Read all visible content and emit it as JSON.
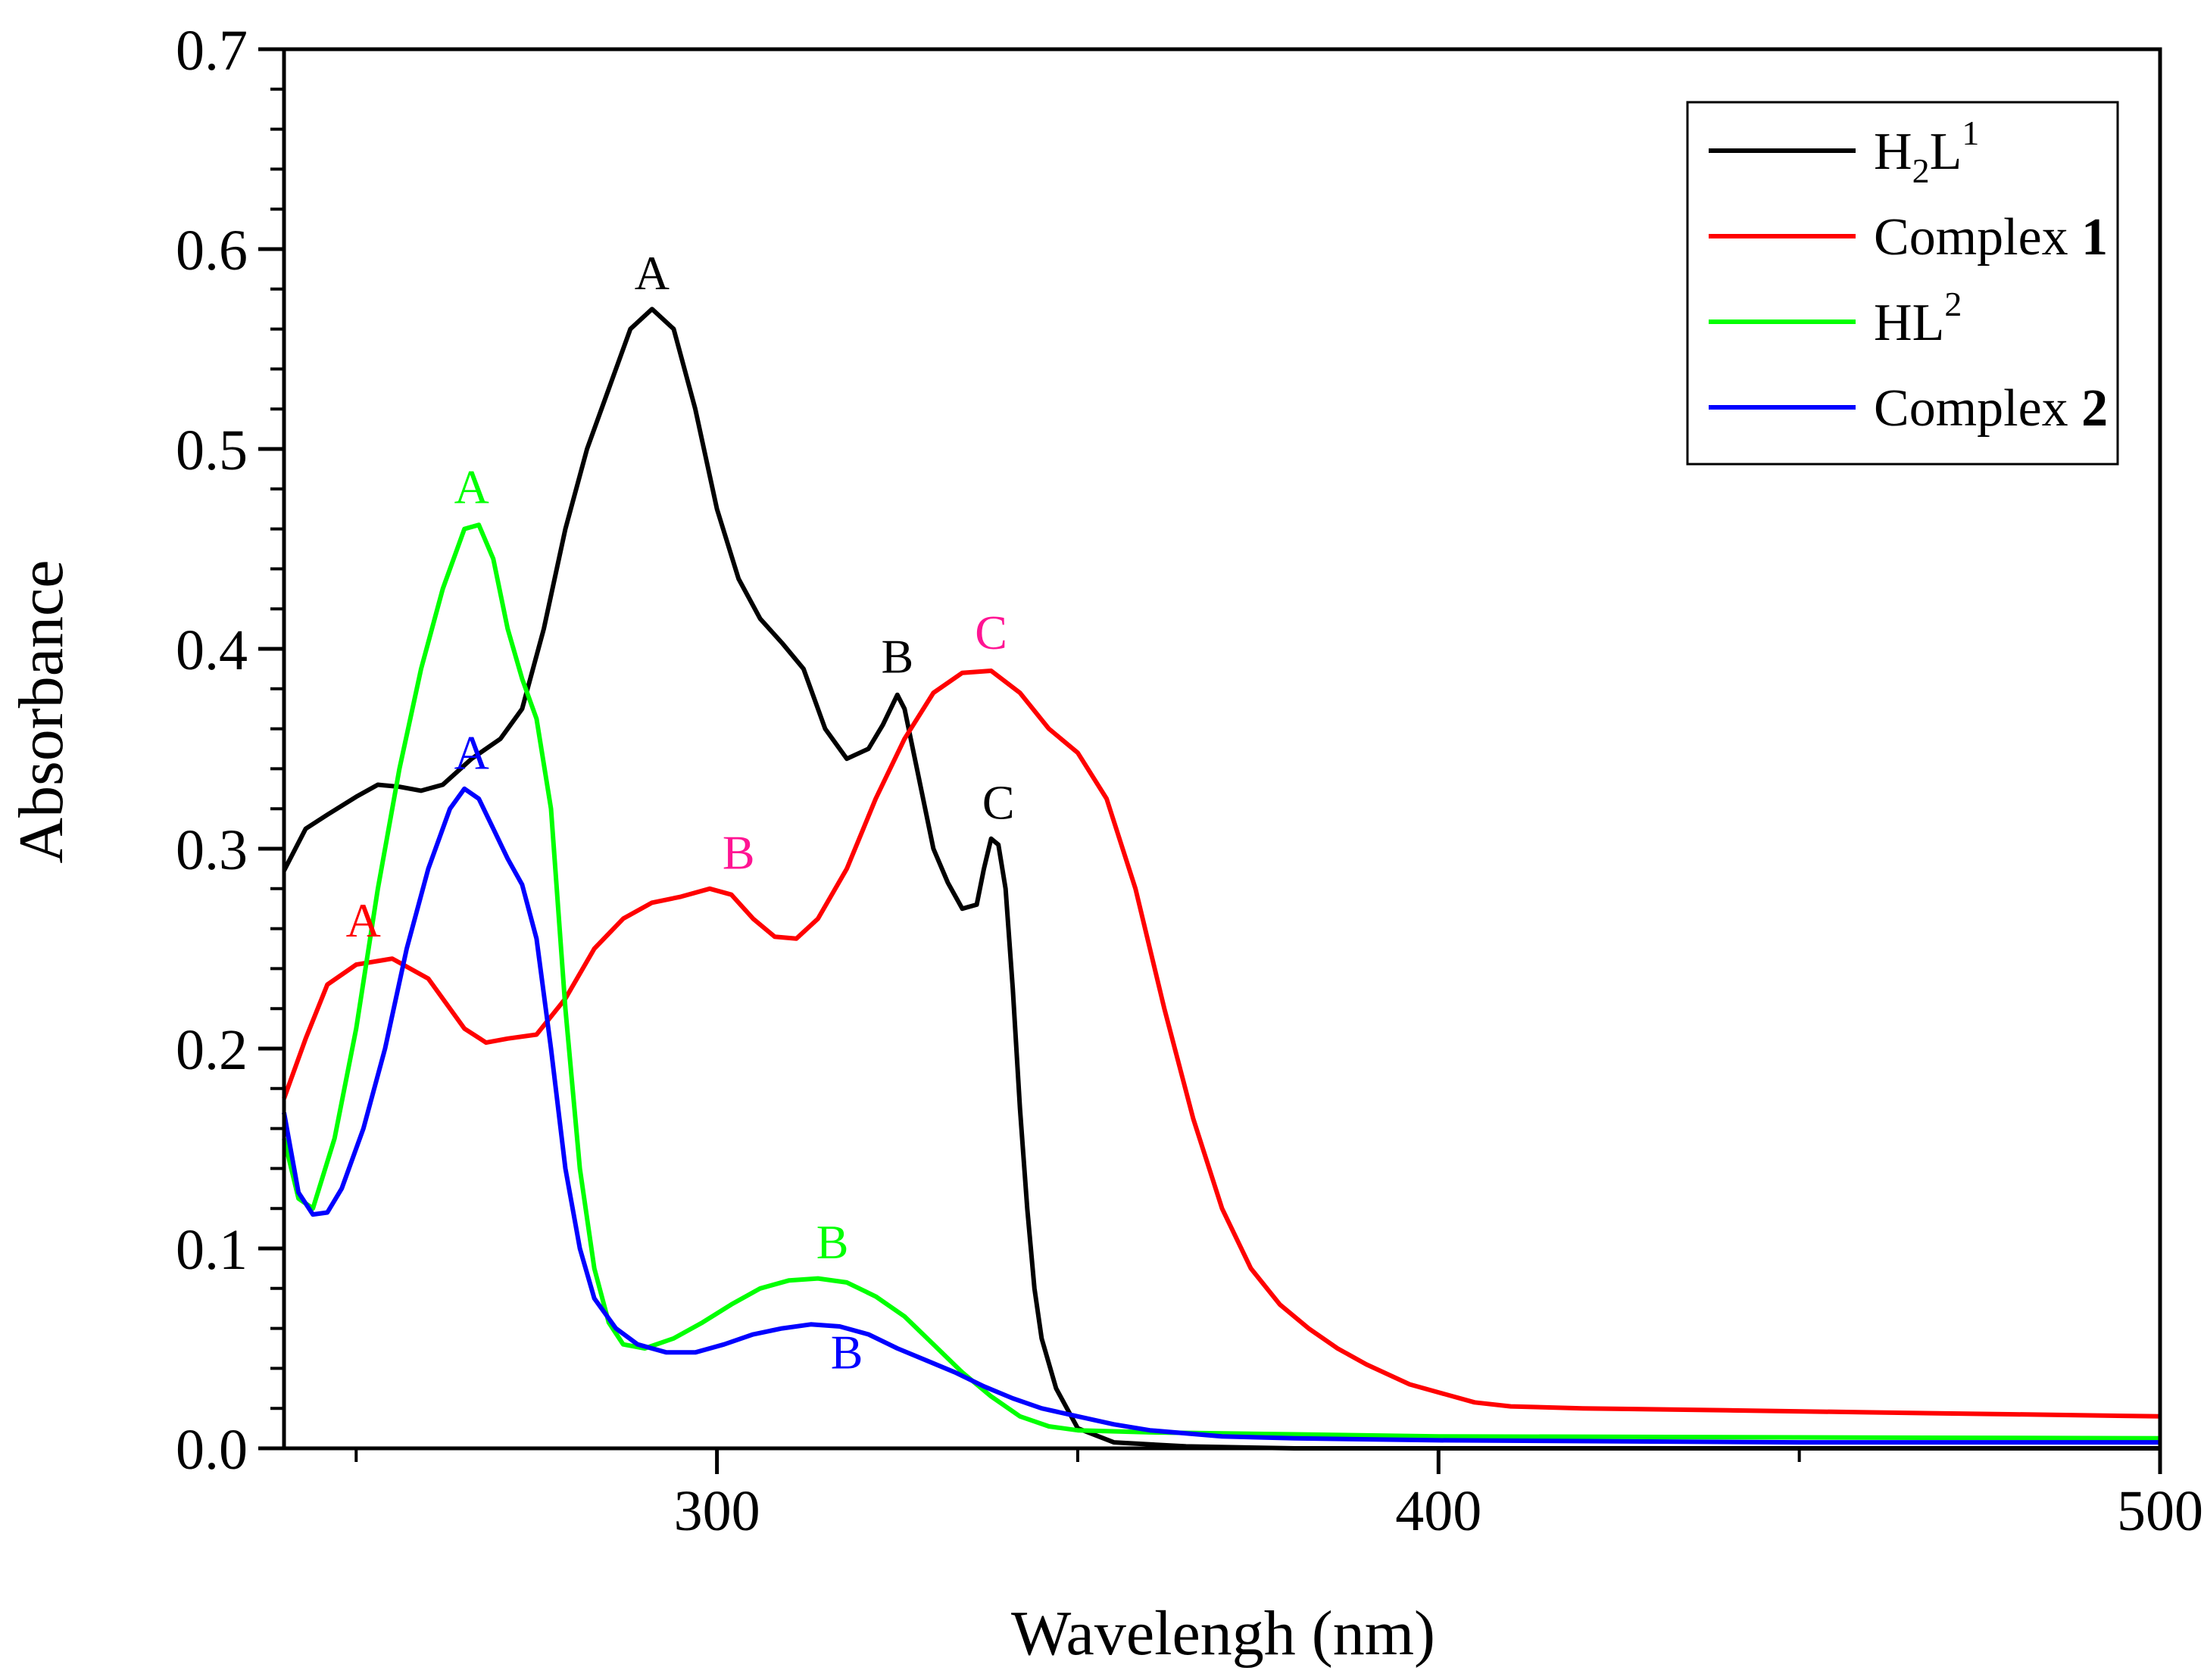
{
  "chart_data": {
    "type": "line",
    "title": "",
    "xlabel": "Wavelengh (nm)",
    "ylabel": "Absorbance",
    "xlim": [
      240,
      500
    ],
    "ylim": [
      0.0,
      0.7
    ],
    "x_ticks": [
      300,
      400,
      500
    ],
    "x_tick_labels": [
      "300",
      "400",
      "500"
    ],
    "x_minor_ticks": [
      250,
      350,
      450
    ],
    "y_ticks": [
      0.0,
      0.1,
      0.2,
      0.3,
      0.4,
      0.5,
      0.6,
      0.7
    ],
    "y_tick_labels": [
      "0.0",
      "0.1",
      "0.2",
      "0.3",
      "0.4",
      "0.5",
      "0.6",
      "0.7"
    ],
    "y_minor_step": 0.02,
    "grid": false,
    "legend_position": "top-right",
    "series": [
      {
        "name": "H2L1",
        "legend": {
          "main": "H",
          "sub": "2",
          "mid": "L",
          "sup": "1",
          "bold": ""
        },
        "color": "#000000",
        "points": [
          [
            240,
            0.289
          ],
          [
            243,
            0.31
          ],
          [
            246,
            0.317
          ],
          [
            250,
            0.326
          ],
          [
            253,
            0.332
          ],
          [
            256,
            0.331
          ],
          [
            259,
            0.329
          ],
          [
            262,
            0.332
          ],
          [
            266,
            0.345
          ],
          [
            270,
            0.355
          ],
          [
            273,
            0.37
          ],
          [
            276,
            0.41
          ],
          [
            279,
            0.46
          ],
          [
            282,
            0.5
          ],
          [
            285,
            0.53
          ],
          [
            288,
            0.56
          ],
          [
            291,
            0.57
          ],
          [
            294,
            0.56
          ],
          [
            297,
            0.52
          ],
          [
            300,
            0.47
          ],
          [
            303,
            0.435
          ],
          [
            306,
            0.415
          ],
          [
            309,
            0.403
          ],
          [
            312,
            0.39
          ],
          [
            315,
            0.36
          ],
          [
            318,
            0.345
          ],
          [
            321,
            0.35
          ],
          [
            323,
            0.362
          ],
          [
            325,
            0.377
          ],
          [
            326,
            0.37
          ],
          [
            328,
            0.335
          ],
          [
            330,
            0.3
          ],
          [
            332,
            0.283
          ],
          [
            334,
            0.27
          ],
          [
            336,
            0.272
          ],
          [
            337,
            0.29
          ],
          [
            338,
            0.305
          ],
          [
            339,
            0.302
          ],
          [
            340,
            0.28
          ],
          [
            341,
            0.23
          ],
          [
            342,
            0.17
          ],
          [
            343,
            0.12
          ],
          [
            344,
            0.08
          ],
          [
            345,
            0.055
          ],
          [
            347,
            0.03
          ],
          [
            350,
            0.01
          ],
          [
            355,
            0.003
          ],
          [
            365,
            0.001
          ],
          [
            380,
            0.0
          ],
          [
            500,
            0.0
          ]
        ]
      },
      {
        "name": "Complex 1",
        "legend": {
          "main": "Complex ",
          "sub": "",
          "mid": "",
          "sup": "",
          "bold": "1"
        },
        "color": "#ff0000",
        "points": [
          [
            240,
            0.175
          ],
          [
            243,
            0.205
          ],
          [
            246,
            0.232
          ],
          [
            250,
            0.242
          ],
          [
            255,
            0.245
          ],
          [
            260,
            0.235
          ],
          [
            265,
            0.21
          ],
          [
            268,
            0.203
          ],
          [
            271,
            0.205
          ],
          [
            275,
            0.207
          ],
          [
            279,
            0.225
          ],
          [
            283,
            0.25
          ],
          [
            287,
            0.265
          ],
          [
            291,
            0.273
          ],
          [
            295,
            0.276
          ],
          [
            299,
            0.28
          ],
          [
            302,
            0.277
          ],
          [
            305,
            0.265
          ],
          [
            308,
            0.256
          ],
          [
            311,
            0.255
          ],
          [
            314,
            0.265
          ],
          [
            318,
            0.29
          ],
          [
            322,
            0.325
          ],
          [
            326,
            0.355
          ],
          [
            330,
            0.378
          ],
          [
            334,
            0.388
          ],
          [
            338,
            0.389
          ],
          [
            342,
            0.378
          ],
          [
            346,
            0.36
          ],
          [
            350,
            0.348
          ],
          [
            354,
            0.325
          ],
          [
            358,
            0.28
          ],
          [
            362,
            0.22
          ],
          [
            366,
            0.165
          ],
          [
            370,
            0.12
          ],
          [
            374,
            0.09
          ],
          [
            378,
            0.072
          ],
          [
            382,
            0.06
          ],
          [
            386,
            0.05
          ],
          [
            390,
            0.042
          ],
          [
            396,
            0.032
          ],
          [
            400,
            0.028
          ],
          [
            405,
            0.023
          ],
          [
            410,
            0.021
          ],
          [
            420,
            0.02
          ],
          [
            440,
            0.019
          ],
          [
            460,
            0.018
          ],
          [
            480,
            0.017
          ],
          [
            500,
            0.016
          ]
        ]
      },
      {
        "name": "HL2",
        "legend": {
          "main": "H",
          "sub": "",
          "mid": "L",
          "sup": "2",
          "bold": ""
        },
        "color": "#00ff00",
        "points": [
          [
            240,
            0.155
          ],
          [
            242,
            0.125
          ],
          [
            244,
            0.12
          ],
          [
            247,
            0.155
          ],
          [
            250,
            0.21
          ],
          [
            253,
            0.28
          ],
          [
            256,
            0.34
          ],
          [
            259,
            0.39
          ],
          [
            262,
            0.43
          ],
          [
            265,
            0.46
          ],
          [
            267,
            0.462
          ],
          [
            269,
            0.445
          ],
          [
            271,
            0.41
          ],
          [
            273,
            0.385
          ],
          [
            275,
            0.365
          ],
          [
            277,
            0.32
          ],
          [
            279,
            0.22
          ],
          [
            281,
            0.14
          ],
          [
            283,
            0.09
          ],
          [
            285,
            0.063
          ],
          [
            287,
            0.052
          ],
          [
            290,
            0.05
          ],
          [
            294,
            0.055
          ],
          [
            298,
            0.063
          ],
          [
            302,
            0.072
          ],
          [
            306,
            0.08
          ],
          [
            310,
            0.084
          ],
          [
            314,
            0.085
          ],
          [
            318,
            0.083
          ],
          [
            322,
            0.076
          ],
          [
            326,
            0.066
          ],
          [
            330,
            0.052
          ],
          [
            334,
            0.038
          ],
          [
            338,
            0.026
          ],
          [
            342,
            0.016
          ],
          [
            346,
            0.011
          ],
          [
            350,
            0.009
          ],
          [
            360,
            0.008
          ],
          [
            380,
            0.007
          ],
          [
            400,
            0.006
          ],
          [
            500,
            0.005
          ]
        ]
      },
      {
        "name": "Complex 2",
        "legend": {
          "main": "Complex ",
          "sub": "",
          "mid": "",
          "sup": "",
          "bold": "2"
        },
        "color": "#0000ff",
        "points": [
          [
            240,
            0.168
          ],
          [
            242,
            0.128
          ],
          [
            244,
            0.117
          ],
          [
            246,
            0.118
          ],
          [
            248,
            0.13
          ],
          [
            251,
            0.16
          ],
          [
            254,
            0.2
          ],
          [
            257,
            0.25
          ],
          [
            260,
            0.29
          ],
          [
            263,
            0.32
          ],
          [
            265,
            0.33
          ],
          [
            267,
            0.325
          ],
          [
            269,
            0.31
          ],
          [
            271,
            0.295
          ],
          [
            273,
            0.282
          ],
          [
            275,
            0.255
          ],
          [
            277,
            0.2
          ],
          [
            279,
            0.14
          ],
          [
            281,
            0.1
          ],
          [
            283,
            0.075
          ],
          [
            286,
            0.06
          ],
          [
            289,
            0.052
          ],
          [
            293,
            0.048
          ],
          [
            297,
            0.048
          ],
          [
            301,
            0.052
          ],
          [
            305,
            0.057
          ],
          [
            309,
            0.06
          ],
          [
            313,
            0.062
          ],
          [
            317,
            0.061
          ],
          [
            321,
            0.057
          ],
          [
            325,
            0.05
          ],
          [
            329,
            0.044
          ],
          [
            333,
            0.038
          ],
          [
            337,
            0.031
          ],
          [
            341,
            0.025
          ],
          [
            345,
            0.02
          ],
          [
            350,
            0.016
          ],
          [
            355,
            0.012
          ],
          [
            360,
            0.009
          ],
          [
            370,
            0.006
          ],
          [
            380,
            0.005
          ],
          [
            400,
            0.004
          ],
          [
            450,
            0.003
          ],
          [
            500,
            0.003
          ]
        ]
      }
    ],
    "annotations": [
      {
        "text": "A",
        "x": 291,
        "y": 0.58,
        "color": "#000000"
      },
      {
        "text": "B",
        "x": 325,
        "y": 0.388,
        "color": "#000000"
      },
      {
        "text": "C",
        "x": 339,
        "y": 0.315,
        "color": "#000000"
      },
      {
        "text": "A",
        "x": 251,
        "y": 0.256,
        "color": "#ff0000"
      },
      {
        "text": "B",
        "x": 303,
        "y": 0.29,
        "color": "#ff1493"
      },
      {
        "text": "C",
        "x": 338,
        "y": 0.4,
        "color": "#ff1493"
      },
      {
        "text": "A",
        "x": 266,
        "y": 0.473,
        "color": "#00ff00"
      },
      {
        "text": "B",
        "x": 316,
        "y": 0.095,
        "color": "#00ff00"
      },
      {
        "text": "A",
        "x": 266,
        "y": 0.34,
        "color": "#0000ff"
      },
      {
        "text": "B",
        "x": 318,
        "y": 0.04,
        "color": "#0000ff"
      }
    ]
  }
}
